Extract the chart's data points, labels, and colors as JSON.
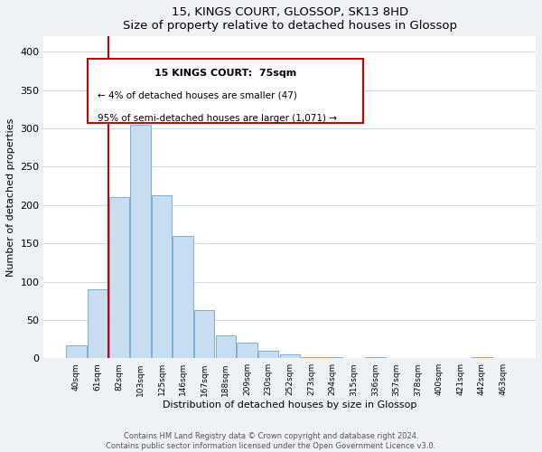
{
  "title": "15, KINGS COURT, GLOSSOP, SK13 8HD",
  "subtitle": "Size of property relative to detached houses in Glossop",
  "xlabel": "Distribution of detached houses by size in Glossop",
  "ylabel": "Number of detached properties",
  "bar_labels": [
    "40sqm",
    "61sqm",
    "82sqm",
    "103sqm",
    "125sqm",
    "146sqm",
    "167sqm",
    "188sqm",
    "209sqm",
    "230sqm",
    "252sqm",
    "273sqm",
    "294sqm",
    "315sqm",
    "336sqm",
    "357sqm",
    "378sqm",
    "400sqm",
    "421sqm",
    "442sqm",
    "463sqm"
  ],
  "bar_values": [
    17,
    90,
    210,
    305,
    213,
    160,
    63,
    30,
    20,
    10,
    5,
    2,
    1,
    0,
    1,
    0,
    0,
    0,
    0,
    1,
    0
  ],
  "bar_color": "#c8ddf0",
  "bar_edge_color": "#7ab0d4",
  "vline_color": "#cc0000",
  "vline_x": 1.5,
  "ylim": [
    0,
    420
  ],
  "yticks": [
    0,
    50,
    100,
    150,
    200,
    250,
    300,
    350,
    400
  ],
  "annotation_title": "15 KINGS COURT:  75sqm",
  "annotation_line1": "← 4% of detached houses are smaller (47)",
  "annotation_line2": "95% of semi-detached houses are larger (1,071) →",
  "footer_line1": "Contains HM Land Registry data © Crown copyright and database right 2024.",
  "footer_line2": "Contains public sector information licensed under the Open Government Licence v3.0.",
  "bg_color": "#eef2f7",
  "plot_bg_color": "#ffffff",
  "grid_color": "#ccd8e8"
}
